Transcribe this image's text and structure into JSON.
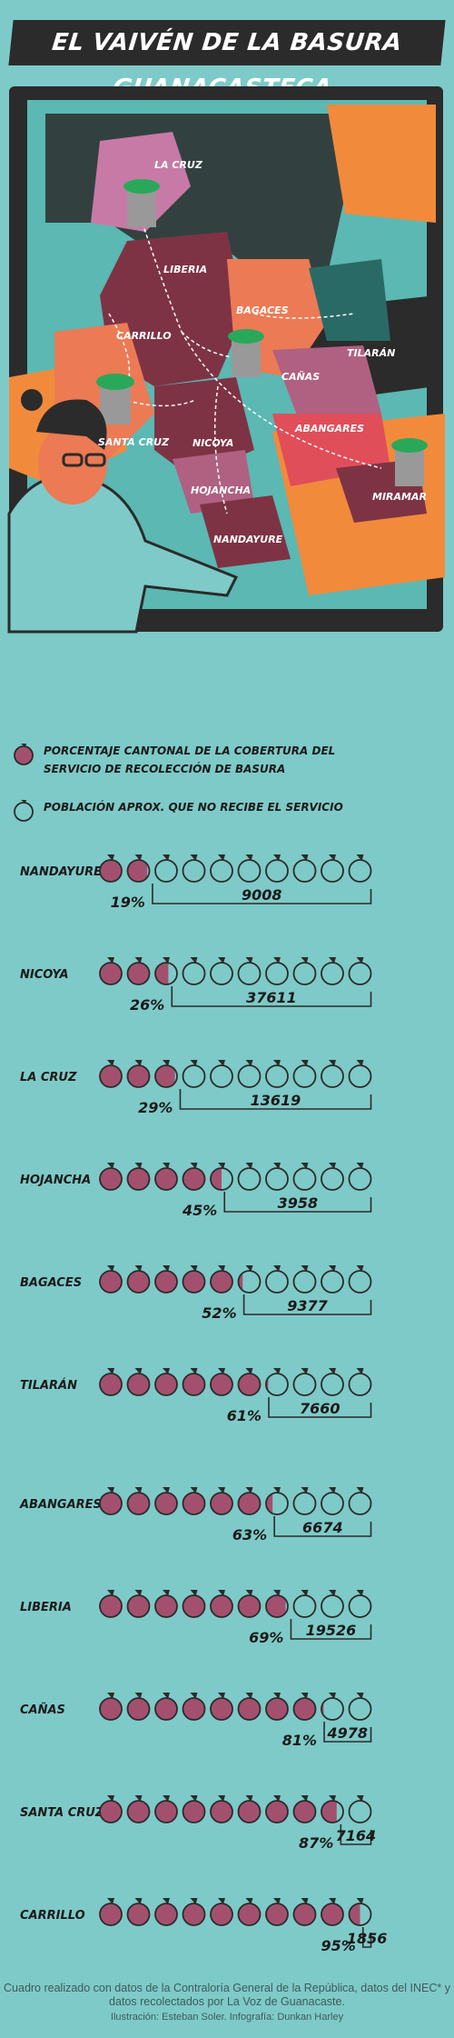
{
  "title": "EL VAIVÉN DE LA BASURA GUANACASTECA",
  "map": {
    "labels": [
      "LA CRUZ",
      "LIBERIA",
      "CARRILLO",
      "BAGACES",
      "TILARÁN",
      "CAÑAS",
      "SANTA CRUZ",
      "NICOYA",
      "ABANGARES",
      "HOJANCHA",
      "NANDAYURE",
      "MIRAMAR"
    ]
  },
  "legend": {
    "coverage": "PORCENTAJE CANTONAL DE LA COBERTURA DEL SERVICIO DE RECOLECCIÓN DE BASURA",
    "uncovered": "POBLACIÓN APROX. QUE NO RECIBE EL SERVICIO"
  },
  "colors": {
    "covered": "#a3506e",
    "empty": "#7ecac8",
    "outline": "#2b2b2b",
    "bg": "#7ecac8"
  },
  "chart_data": {
    "type": "table",
    "categories": [
      "NANDAYURE",
      "NICOYA",
      "LA CRUZ",
      "HOJANCHA",
      "BAGACES",
      "TILARÁN",
      "ABANGARES",
      "LIBERIA",
      "CAÑAS",
      "SANTA CRUZ",
      "CARRILLO"
    ],
    "series": [
      {
        "name": "PORCENTAJE CANTONAL DE LA COBERTURA DEL SERVICIO DE RECOLECCIÓN DE BASURA",
        "values": [
          19,
          26,
          29,
          45,
          52,
          61,
          63,
          69,
          81,
          87,
          95
        ]
      },
      {
        "name": "POBLACIÓN APROX. QUE NO RECIBE EL SERVICIO",
        "values": [
          9008,
          37611,
          13619,
          3958,
          9377,
          7660,
          6674,
          19526,
          4978,
          7164,
          1856
        ]
      }
    ],
    "pct_labels": [
      "19%",
      "26%",
      "29%",
      "45%",
      "52%",
      "61%",
      "63%",
      "69%",
      "81%",
      "87%",
      "95%"
    ],
    "pop_labels": [
      "9008",
      "37611",
      "13619",
      "3958",
      "9377",
      "7660",
      "6674",
      "19526",
      "4978",
      "7164",
      "1856"
    ]
  },
  "footer": {
    "source": "Cuadro realizado con datos de la Contraloría General de la República, datos del INEC* y datos recolectados por La Voz de Guanacaste.",
    "credit": "Ilustración: Esteban Soler. Infografía: Dunkan Harley"
  }
}
